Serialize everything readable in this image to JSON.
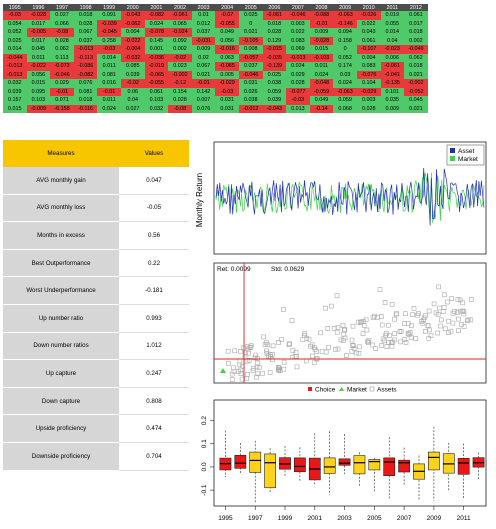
{
  "heat_table": {
    "years": [
      "1995",
      "1996",
      "1997",
      "1998",
      "1999",
      "2000",
      "2001",
      "2002",
      "2003",
      "2004",
      "2005",
      "2006",
      "2007",
      "2008",
      "2009",
      "2010",
      "2011",
      "2012"
    ],
    "rows": [
      [
        "-0.03",
        "-0.028",
        "0.027",
        "0.018",
        "0.091",
        "-0.043",
        "-0.082",
        "-0.061",
        "0.01",
        "-0.07",
        "0.025",
        "-0.061",
        "-0.046",
        "-0.088",
        "-0.063",
        "-0.026",
        "0.019",
        "0.061"
      ],
      [
        "0.054",
        "0.017",
        "0.066",
        "0.028",
        "-0.039",
        "-0.062",
        "0.024",
        "0.065",
        "0.012",
        "-0.055",
        "0",
        "0.018",
        "0.003",
        "-0.01",
        "-0.146",
        "0.022",
        "0.055",
        "0.017"
      ],
      [
        "0.052",
        "-0.005",
        "-0.08",
        "0.067",
        "-0.045",
        "0.004",
        "-0.078",
        "-0.024",
        "0.037",
        "0.049",
        "0.021",
        "0.028",
        "0.022",
        "0.009",
        "0.094",
        "0.043",
        "0.014",
        "0.018"
      ],
      [
        "0.025",
        "0.017",
        "0.028",
        "0.037",
        "0.258",
        "-0.022",
        "0.145",
        "0.092",
        "-0.031",
        "0.056",
        "-0.105",
        "0.129",
        "0.083",
        "-0.028",
        "0.158",
        "0.061",
        "0.04",
        "0.002"
      ],
      [
        "0.014",
        "0.045",
        "0.062",
        "-0.013",
        "-0.03",
        "-0.004",
        "0.001",
        "0.002",
        "0.009",
        "-0.016",
        "0.008",
        "-0.015",
        "0.069",
        "0.015",
        "0",
        "-0.107",
        "-0.023",
        "-0.049"
      ],
      [
        "-0.044",
        "0.011",
        "0.113",
        "-0.113",
        "0.014",
        "-0.032",
        "-0.036",
        "-0.02",
        "0.02",
        "0.063",
        "-0.057",
        "-0.035",
        "-0.013",
        "-0.103",
        "0.052",
        "0.004",
        "0.006",
        "0.062"
      ],
      [
        "-0.013",
        "-0.022",
        "-0.073",
        "-0.086",
        "0.011",
        "0.085",
        "-0.019",
        "0.023",
        "0.067",
        "-0.085",
        "0.037",
        "-0.139",
        "0.024",
        "0.011",
        "0.174",
        "0.083",
        "-0.061",
        "0.018"
      ],
      [
        "-0.013",
        "0.056",
        "-0.046",
        "-0.082",
        "0.081",
        "0.039",
        "-0.065",
        "-0.002",
        "0.021",
        "0.005",
        "-0.046",
        "0.025",
        "0.029",
        "0.024",
        "0.03",
        "-0.076",
        "-0.041",
        "0.021"
      ],
      [
        "0.032",
        "0.015",
        "0.029",
        "0.076",
        "0.016",
        "-0.02",
        "-0.055",
        "-0.12",
        "-0.01",
        "-0.029",
        "0.031",
        "0.038",
        "0.028",
        "-0.048",
        "0.024",
        "0.104",
        "-0.135",
        "-0.002"
      ],
      [
        "0.039",
        "0.095",
        "-0.01",
        "0.081",
        "-0.01",
        "0.06",
        "0.061",
        "0.154",
        "0.142",
        "-0.03",
        "0.026",
        "0.059",
        "-0.077",
        "-0.059",
        "-0.063",
        "-0.029",
        "0.101",
        "-0.052"
      ],
      [
        "0.157",
        "0.103",
        "0.071",
        "0.018",
        "0.011",
        "0.04",
        "0.103",
        "0.028",
        "0.007",
        "0.031",
        "0.038",
        "0.039",
        "-0.03",
        "0.049",
        "0.059",
        "0.003",
        "0.035",
        "0.045"
      ],
      [
        "0.015",
        "-0.009",
        "-0.158",
        "-0.116",
        "0.024",
        "0.027",
        "0.032",
        "-0.08",
        "0.076",
        "0.031",
        "-0.012",
        "-0.043",
        "0.013",
        "-0.14",
        "0.068",
        "0.028",
        "0.009",
        "0.021"
      ]
    ]
  },
  "measures_table": {
    "header_measures": "Measures",
    "header_values": "Values",
    "rows": [
      {
        "measure": "AVG monthly gain",
        "value": "0.047"
      },
      {
        "measure": "AVG monthly loss",
        "value": "-0.05"
      },
      {
        "measure": "Months in excess",
        "value": "0.56"
      },
      {
        "measure": "Best Outperformance",
        "value": "0.22"
      },
      {
        "measure": "Worst Underperformance",
        "value": "-0.181"
      },
      {
        "measure": "Up number ratio",
        "value": "0.993"
      },
      {
        "measure": "Down number ratios",
        "value": "1.012"
      },
      {
        "measure": "Up capture",
        "value": "0.247"
      },
      {
        "measure": "Down capture",
        "value": "0.808"
      },
      {
        "measure": "Upside proficiency",
        "value": "0.474"
      },
      {
        "measure": "Downside proficiency",
        "value": "0.704"
      }
    ]
  },
  "colors": {
    "heat_positive": "#4fc96a",
    "heat_negative": "#e83a3a",
    "header_yellow": "#f7c600",
    "asset_line": "#1f2fb5",
    "market_line": "#3fd24a",
    "choice_red": "#e02020",
    "box_red": "#e81818",
    "box_yellow": "#ffd21c"
  },
  "chart_data": [
    {
      "type": "line",
      "ylabel": "Monthly Return",
      "series": [
        {
          "name": "Asset"
        },
        {
          "name": "Market"
        }
      ],
      "legend": "top-right"
    },
    {
      "type": "scatter",
      "annotation_ret": "Ret: 0.0099",
      "annotation_std": "Std: 0.0629",
      "legend": [
        {
          "name": "Choice"
        },
        {
          "name": "Market"
        },
        {
          "name": "Assets"
        }
      ],
      "legend_placement": "bottom"
    },
    {
      "type": "box",
      "y_ticks": [
        "-0.1",
        "0.0",
        "0.1",
        "0.2"
      ],
      "x_labels": [
        "1995",
        "1997",
        "1999",
        "2001",
        "2003",
        "2005",
        "2007",
        "2009",
        "2011"
      ],
      "yrange": [
        -0.16,
        0.28
      ],
      "boxes": [
        {
          "year": "1995",
          "q1": -0.013,
          "med": 0.014,
          "q3": 0.038,
          "lo": -0.044,
          "hi": 0.157,
          "fill": "red"
        },
        {
          "year": "1996",
          "q1": -0.006,
          "med": 0.016,
          "q3": 0.05,
          "lo": -0.028,
          "hi": 0.103,
          "fill": "red"
        },
        {
          "year": "1997",
          "q1": -0.024,
          "med": 0.028,
          "q3": 0.064,
          "lo": -0.158,
          "hi": 0.113,
          "fill": "yellow"
        },
        {
          "year": "1998",
          "q1": -0.09,
          "med": 0.018,
          "q3": 0.056,
          "lo": -0.116,
          "hi": 0.081,
          "fill": "yellow"
        },
        {
          "year": "1999",
          "q1": -0.01,
          "med": 0.013,
          "q3": 0.04,
          "lo": -0.045,
          "hi": 0.091,
          "fill": "red"
        },
        {
          "year": "2000",
          "q1": -0.021,
          "med": 0.002,
          "q3": 0.039,
          "lo": -0.062,
          "hi": 0.085,
          "fill": "red"
        },
        {
          "year": "2001",
          "q1": -0.056,
          "med": -0.009,
          "q3": 0.038,
          "lo": -0.082,
          "hi": 0.145,
          "fill": "red"
        },
        {
          "year": "2002",
          "q1": -0.028,
          "med": 0.0,
          "q3": 0.039,
          "lo": -0.12,
          "hi": 0.154,
          "fill": "yellow"
        },
        {
          "year": "2003",
          "q1": 0.007,
          "med": 0.016,
          "q3": 0.035,
          "lo": -0.031,
          "hi": 0.142,
          "fill": "red"
        },
        {
          "year": "2004",
          "q1": -0.03,
          "med": 0.018,
          "q3": 0.049,
          "lo": -0.085,
          "hi": 0.063,
          "fill": "yellow"
        },
        {
          "year": "2005",
          "q1": -0.013,
          "med": 0.023,
          "q3": 0.032,
          "lo": -0.105,
          "hi": 0.038,
          "fill": "yellow"
        },
        {
          "year": "2006",
          "q1": -0.038,
          "med": 0.021,
          "q3": 0.039,
          "lo": -0.139,
          "hi": 0.129,
          "fill": "red"
        },
        {
          "year": "2007",
          "q1": -0.022,
          "med": 0.018,
          "q3": 0.029,
          "lo": -0.077,
          "hi": 0.083,
          "fill": "red"
        },
        {
          "year": "2008",
          "q1": -0.053,
          "med": -0.019,
          "q3": 0.013,
          "lo": -0.14,
          "hi": 0.049,
          "fill": "yellow"
        },
        {
          "year": "2009",
          "q1": -0.013,
          "med": 0.041,
          "q3": 0.064,
          "lo": -0.146,
          "hi": 0.174,
          "fill": "yellow"
        },
        {
          "year": "2010",
          "q1": -0.027,
          "med": 0.013,
          "q3": 0.057,
          "lo": -0.107,
          "hi": 0.104,
          "fill": "yellow"
        },
        {
          "year": "2011",
          "q1": -0.032,
          "med": 0.017,
          "q3": 0.037,
          "lo": -0.135,
          "hi": 0.101,
          "fill": "red"
        },
        {
          "year": "2012",
          "q1": -0.001,
          "med": 0.018,
          "q3": 0.04,
          "lo": -0.052,
          "hi": 0.062,
          "fill": "red"
        }
      ]
    }
  ]
}
